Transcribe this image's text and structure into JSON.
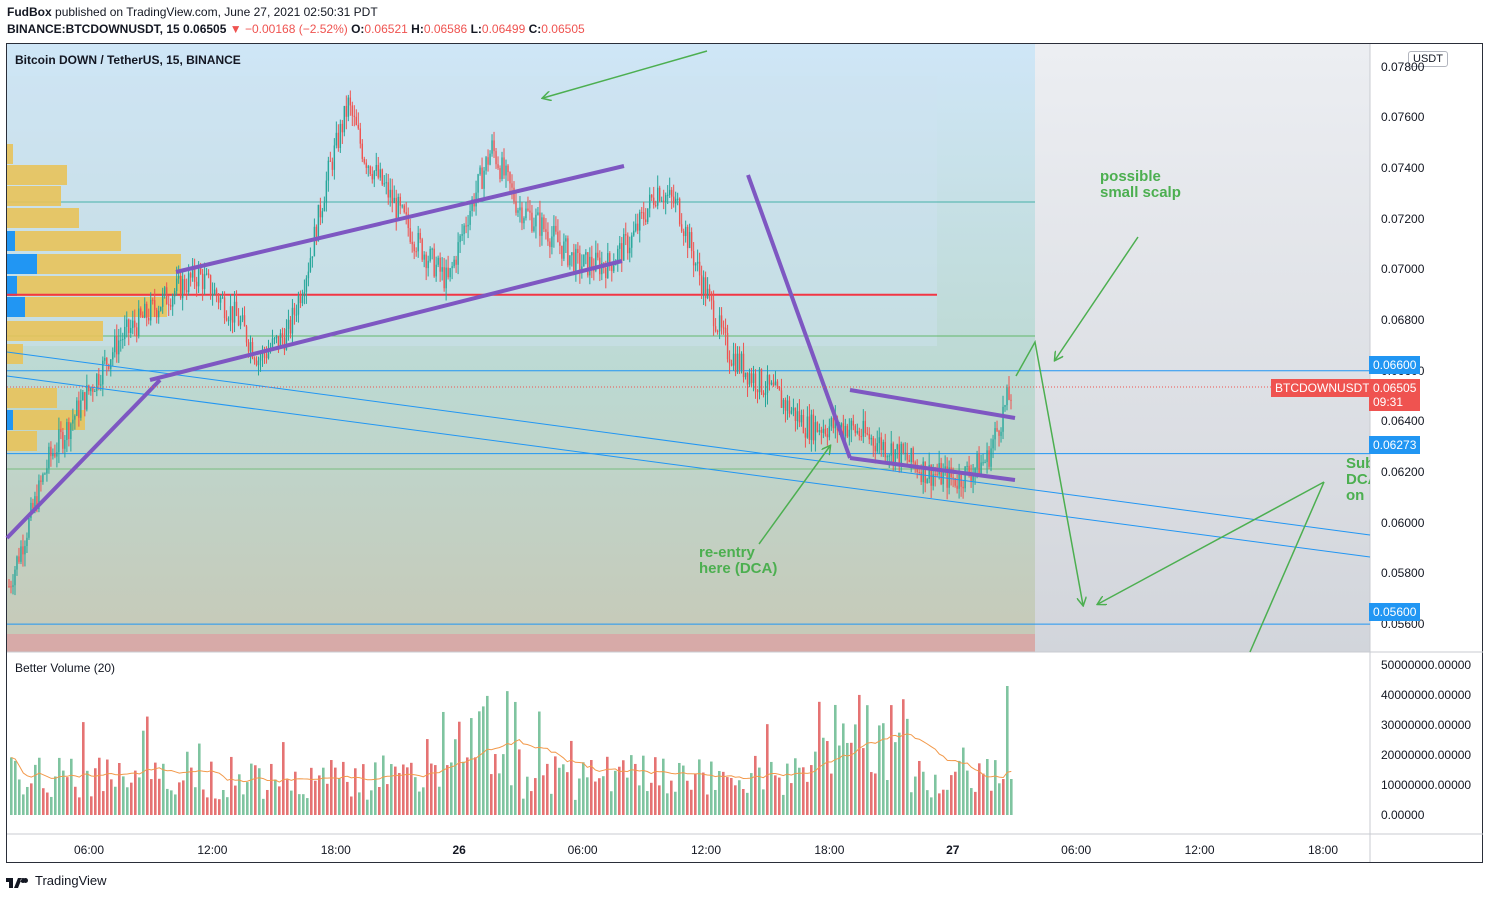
{
  "header": {
    "author": "FudBox",
    "published": "published on TradingView.com, June 27, 2021 02:50:31 PDT",
    "ticker": "BINANCE:BTCDOWNUSDT, 15",
    "last": "0.06505",
    "change": "−0.00168 (−2.52%)",
    "o_label": "O:",
    "o": "0.06521",
    "h_label": "H:",
    "h": "0.06586",
    "l_label": "L:",
    "l": "0.06499",
    "c_label": "C:",
    "c": "0.06505"
  },
  "symbol_title": "Bitcoin DOWN / TetherUS, 15, BINANCE",
  "currency_badge": "USDT",
  "price_labels": {
    "symbol_tag": "BTCDOWNUSDT",
    "last": "0.06505",
    "countdown": "09:31",
    "level_0660": "0.06600",
    "level_06273": "0.06273",
    "level_0560": "0.05600"
  },
  "annotations": {
    "scalp": "possible\nsmall scalp",
    "reentry": "re-entry\nhere (DCA)",
    "sub": "Sub\nDCA\non"
  },
  "volume_title": "Better Volume (20)",
  "brand": "TradingView",
  "colors": {
    "up": "#26a69a",
    "down": "#ef5350",
    "trend": "#7e57c2",
    "arrow": "#4caf50",
    "level_blue": "#2196f3",
    "level_red": "#f23645",
    "vp": "#e8c35a"
  },
  "chart_data": {
    "type": "candlestick",
    "y_ticks": [
      "0.07800",
      "0.07600",
      "0.07400",
      "0.07200",
      "0.07000",
      "0.06800",
      "0.06600",
      "0.06400",
      "0.06200",
      "0.06000",
      "0.05800",
      "0.05600"
    ],
    "ylim": [
      0.0549,
      0.0789
    ],
    "x_ticks": [
      {
        "label": "06:00",
        "bold": false
      },
      {
        "label": "12:00",
        "bold": false
      },
      {
        "label": "18:00",
        "bold": false
      },
      {
        "label": "26",
        "bold": true
      },
      {
        "label": "06:00",
        "bold": false
      },
      {
        "label": "12:00",
        "bold": false
      },
      {
        "label": "18:00",
        "bold": false
      },
      {
        "label": "27",
        "bold": true
      },
      {
        "label": "06:00",
        "bold": false
      },
      {
        "label": "12:00",
        "bold": false
      },
      {
        "label": "18:00",
        "bold": false
      }
    ],
    "volume_ticks": [
      "50000000.00000",
      "40000000.00000",
      "30000000.00000",
      "20000000.00000",
      "10000000.00000",
      "0.00000"
    ],
    "volume_range": [
      0,
      50000000
    ],
    "anchors": [
      [
        0,
        0.0575
      ],
      [
        20,
        0.0625
      ],
      [
        40,
        0.0652
      ],
      [
        55,
        0.0672
      ],
      [
        80,
        0.069
      ],
      [
        95,
        0.0698
      ],
      [
        115,
        0.068
      ],
      [
        125,
        0.0665
      ],
      [
        140,
        0.0675
      ],
      [
        150,
        0.0702
      ],
      [
        160,
        0.0738
      ],
      [
        170,
        0.0765
      ],
      [
        178,
        0.0745
      ],
      [
        190,
        0.073
      ],
      [
        205,
        0.071
      ],
      [
        220,
        0.0695
      ],
      [
        230,
        0.0722
      ],
      [
        242,
        0.0748
      ],
      [
        255,
        0.0725
      ],
      [
        270,
        0.0715
      ],
      [
        285,
        0.0702
      ],
      [
        300,
        0.0702
      ],
      [
        312,
        0.0712
      ],
      [
        325,
        0.0732
      ],
      [
        335,
        0.0725
      ],
      [
        345,
        0.07
      ],
      [
        360,
        0.0668
      ],
      [
        372,
        0.0658
      ],
      [
        385,
        0.065
      ],
      [
        400,
        0.0638
      ],
      [
        420,
        0.0638
      ],
      [
        440,
        0.063
      ],
      [
        460,
        0.062
      ],
      [
        475,
        0.0617
      ],
      [
        490,
        0.0625
      ],
      [
        500,
        0.0648
      ],
      [
        503,
        0.0652
      ]
    ],
    "levels": [
      {
        "price": 0.066,
        "color": "#2196f3"
      },
      {
        "price": 0.06273,
        "color": "#2196f3"
      },
      {
        "price": 0.056,
        "color": "#2196f3"
      },
      {
        "price": 0.069,
        "color": "#f23645"
      }
    ]
  }
}
